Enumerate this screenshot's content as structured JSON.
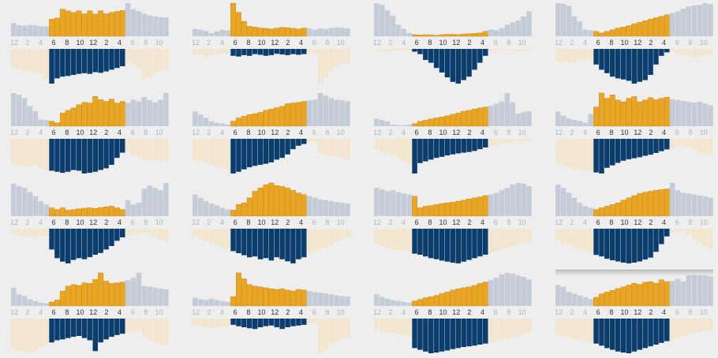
{
  "chart_data": {
    "type": "bar",
    "description_hint": "",
    "hour_tick_labels": [
      "12",
      "2",
      "4",
      "6",
      "8",
      "10",
      "12",
      "2",
      "4",
      "6",
      "8",
      "10"
    ],
    "colors": {
      "night_top": "#c3ccd7",
      "day_top": "#e8a623",
      "day_top_dark": "#c8861a",
      "night_bottom": "#f3e6cf",
      "day_bottom": "#0b3e6d",
      "background": "#eeeeee"
    },
    "panels": [
      {
        "top": [
          40,
          33,
          32,
          34,
          33,
          30,
          30,
          52,
          55,
          82,
          77,
          72,
          77,
          68,
          77,
          67,
          77,
          68,
          72,
          75,
          78,
          100,
          82,
          76,
          68,
          63,
          60,
          58,
          57
        ],
        "bottom": [
          55,
          58,
          62,
          63,
          68,
          72,
          88,
          100,
          85,
          80,
          78,
          75,
          72,
          70,
          72,
          67,
          69,
          65,
          60,
          55,
          50,
          40,
          45,
          55,
          85,
          80,
          70,
          62,
          60
        ]
      },
      {
        "top": [
          22,
          20,
          16,
          10,
          15,
          20,
          18,
          100,
          72,
          45,
          30,
          28,
          25,
          24,
          22,
          25,
          27,
          26,
          24,
          22,
          25,
          24,
          20,
          24,
          22,
          25,
          27,
          26,
          24
        ],
        "bottom": [
          15,
          18,
          22,
          18,
          15,
          12,
          14,
          20,
          22,
          18,
          20,
          15,
          17,
          20,
          18,
          14,
          16,
          18,
          15,
          17,
          15,
          12,
          14,
          100,
          80,
          62,
          50,
          45,
          42
        ]
      },
      {
        "top": [
          100,
          95,
          78,
          62,
          35,
          22,
          10,
          5,
          4,
          5,
          4,
          3,
          5,
          6,
          6,
          5,
          7,
          8,
          9,
          10,
          15,
          20,
          18,
          25,
          35,
          42,
          48,
          60,
          75
        ],
        "bottom": [
          5,
          7,
          6,
          5,
          4,
          3,
          4,
          8,
          15,
          32,
          40,
          55,
          68,
          82,
          95,
          100,
          90,
          80,
          60,
          40,
          20,
          10,
          5,
          5,
          6,
          5,
          7,
          6,
          5
        ]
      },
      {
        "top": [
          100,
          98,
          92,
          60,
          45,
          20,
          18,
          15,
          10,
          15,
          20,
          25,
          28,
          32,
          38,
          42,
          47,
          52,
          56,
          60,
          65,
          70,
          75,
          83,
          90,
          93,
          95,
          100,
          97
        ],
        "bottom": [
          35,
          40,
          38,
          42,
          35,
          30,
          32,
          45,
          60,
          70,
          80,
          85,
          88,
          92,
          100,
          95,
          90,
          75,
          45,
          20,
          10,
          8,
          15,
          18,
          20,
          25,
          22,
          20,
          18
        ]
      },
      {
        "top": [
          100,
          95,
          85,
          60,
          45,
          20,
          18,
          15,
          10,
          40,
          48,
          55,
          65,
          72,
          70,
          90,
          80,
          75,
          82,
          70,
          75,
          70,
          80,
          75,
          88,
          78,
          72,
          80,
          100
        ],
        "bottom": [
          70,
          75,
          78,
          80,
          75,
          85,
          90,
          92,
          95,
          98,
          95,
          90,
          92,
          100,
          98,
          95,
          90,
          85,
          75,
          55,
          40,
          35,
          45,
          50,
          58,
          60,
          62,
          65,
          62
        ]
      },
      {
        "top": [
          45,
          35,
          25,
          15,
          10,
          8,
          5,
          15,
          25,
          30,
          35,
          38,
          42,
          48,
          52,
          56,
          60,
          68,
          70,
          72,
          75,
          78,
          80,
          100,
          92,
          85,
          80,
          78,
          75
        ],
        "bottom": [
          60,
          65,
          70,
          75,
          80,
          85,
          90,
          100,
          95,
          88,
          82,
          78,
          75,
          72,
          68,
          60,
          55,
          45,
          30,
          20,
          15,
          10,
          8,
          40,
          45,
          50,
          52,
          55,
          58
        ]
      },
      {
        "top": [
          22,
          18,
          15,
          5,
          3,
          3,
          5,
          8,
          15,
          18,
          22,
          25,
          28,
          32,
          36,
          40,
          45,
          48,
          52,
          55,
          58,
          62,
          68,
          75,
          100,
          72,
          38,
          42,
          45
        ],
        "bottom": [
          30,
          38,
          42,
          48,
          55,
          65,
          75,
          100,
          70,
          65,
          60,
          55,
          52,
          48,
          45,
          42,
          40,
          38,
          35,
          30,
          25,
          22,
          20,
          15,
          12,
          10,
          8,
          6,
          5
        ]
      },
      {
        "top": [
          42,
          30,
          22,
          18,
          15,
          10,
          35,
          55,
          95,
          80,
          90,
          75,
          70,
          80,
          85,
          70,
          75,
          82,
          76,
          80,
          83,
          78,
          75,
          72,
          70,
          68,
          70,
          65,
          60
        ],
        "bottom": [
          70,
          75,
          80,
          85,
          88,
          90,
          92,
          95,
          98,
          82,
          75,
          68,
          62,
          58,
          55,
          52,
          48,
          45,
          40,
          35,
          30,
          25,
          20,
          18,
          22,
          30,
          38,
          42,
          45
        ]
      },
      {
        "top": [
          98,
          90,
          85,
          72,
          60,
          45,
          35,
          25,
          20,
          25,
          18,
          20,
          22,
          24,
          25,
          23,
          26,
          28,
          30,
          25,
          20,
          48,
          35,
          40,
          82,
          92,
          85,
          78,
          100
        ],
        "bottom": [
          15,
          18,
          20,
          22,
          25,
          20,
          18,
          60,
          85,
          95,
          100,
          90,
          85,
          88,
          82,
          75,
          70,
          60,
          50,
          35,
          25,
          20,
          18,
          15,
          12,
          15,
          22,
          30,
          35
        ]
      },
      {
        "top": [
          65,
          55,
          45,
          38,
          32,
          25,
          20,
          18,
          35,
          40,
          55,
          75,
          85,
          95,
          100,
          92,
          90,
          85,
          78,
          70,
          65,
          60,
          55,
          50,
          48,
          45,
          42,
          40,
          38
        ],
        "bottom": [
          20,
          25,
          30,
          35,
          40,
          45,
          50,
          55,
          60,
          65,
          70,
          68,
          75,
          72,
          78,
          70,
          75,
          80,
          85,
          75,
          70,
          60,
          55,
          50,
          45,
          38,
          30,
          25,
          20
        ]
      },
      {
        "top": [
          85,
          80,
          75,
          78,
          72,
          68,
          65,
          60,
          25,
          30,
          32,
          35,
          38,
          40,
          42,
          45,
          48,
          52,
          55,
          58,
          62,
          65,
          70,
          78,
          85,
          95,
          100,
          98,
          90
        ],
        "bottom": [
          45,
          50,
          55,
          60,
          62,
          65,
          68,
          72,
          75,
          80,
          85,
          88,
          92,
          95,
          98,
          100,
          95,
          90,
          85,
          80,
          75,
          70,
          65,
          60,
          55,
          50,
          45,
          40,
          38
        ]
      },
      {
        "top": [
          95,
          85,
          70,
          55,
          40,
          30,
          25,
          20,
          25,
          30,
          35,
          40,
          48,
          55,
          62,
          68,
          72,
          75,
          78,
          80,
          82,
          100,
          78,
          70,
          68,
          65,
          62,
          60,
          55
        ],
        "bottom": [
          30,
          38,
          42,
          48,
          52,
          58,
          62,
          68,
          72,
          78,
          82,
          85,
          88,
          90,
          88,
          85,
          80,
          75,
          60,
          40,
          20,
          10,
          8,
          5,
          15,
          25,
          35,
          45,
          50
        ]
      },
      {
        "top": [
          55,
          35,
          30,
          20,
          15,
          10,
          8,
          12,
          18,
          45,
          60,
          65,
          62,
          70,
          68,
          80,
          100,
          75,
          68,
          70,
          72,
          78,
          85,
          100,
          60,
          58,
          55,
          52,
          50
        ],
        "bottom": [
          70,
          75,
          78,
          80,
          75,
          65,
          60,
          55,
          50,
          48,
          45,
          42,
          40,
          45,
          50,
          75,
          55,
          48,
          42,
          38,
          35,
          32,
          30,
          28,
          40,
          50,
          55,
          60,
          62
        ]
      },
      {
        "top": [
          25,
          20,
          18,
          22,
          18,
          15,
          12,
          28,
          100,
          82,
          65,
          60,
          58,
          55,
          52,
          50,
          52,
          48,
          45,
          50,
          48,
          45,
          42,
          40,
          38,
          35,
          32,
          30,
          28
        ],
        "bottom": [
          20,
          22,
          25,
          28,
          25,
          22,
          20,
          18,
          22,
          25,
          28,
          30,
          25,
          22,
          20,
          25,
          30,
          25,
          22,
          20,
          18,
          15,
          12,
          100,
          90,
          75,
          65,
          58,
          55
        ],
        "_note": ""
      },
      {
        "top": [
          35,
          28,
          22,
          18,
          15,
          12,
          10,
          15,
          20,
          25,
          28,
          32,
          38,
          42,
          48,
          52,
          55,
          58,
          62,
          68,
          72,
          78,
          85,
          95,
          100,
          98,
          92,
          88,
          80
        ],
        "bottom": [
          30,
          35,
          40,
          42,
          45,
          48,
          50,
          85,
          90,
          95,
          100,
          98,
          95,
          92,
          88,
          85,
          82,
          80,
          78,
          75,
          72,
          68,
          65,
          62,
          58,
          55,
          50,
          45,
          42
        ]
      },
      {
        "top": [
          60,
          55,
          40,
          35,
          30,
          25,
          20,
          25,
          35,
          40,
          45,
          50,
          55,
          60,
          65,
          62,
          68,
          70,
          65,
          75,
          70,
          72,
          78,
          70,
          90,
          95,
          92,
          88,
          85
        ],
        "bottom": [
          45,
          50,
          55,
          60,
          62,
          65,
          70,
          72,
          78,
          85,
          90,
          95,
          98,
          100,
          95,
          90,
          85,
          80,
          75,
          70,
          65,
          60,
          55,
          50,
          45,
          42,
          38,
          35,
          32
        ]
      }
    ]
  }
}
